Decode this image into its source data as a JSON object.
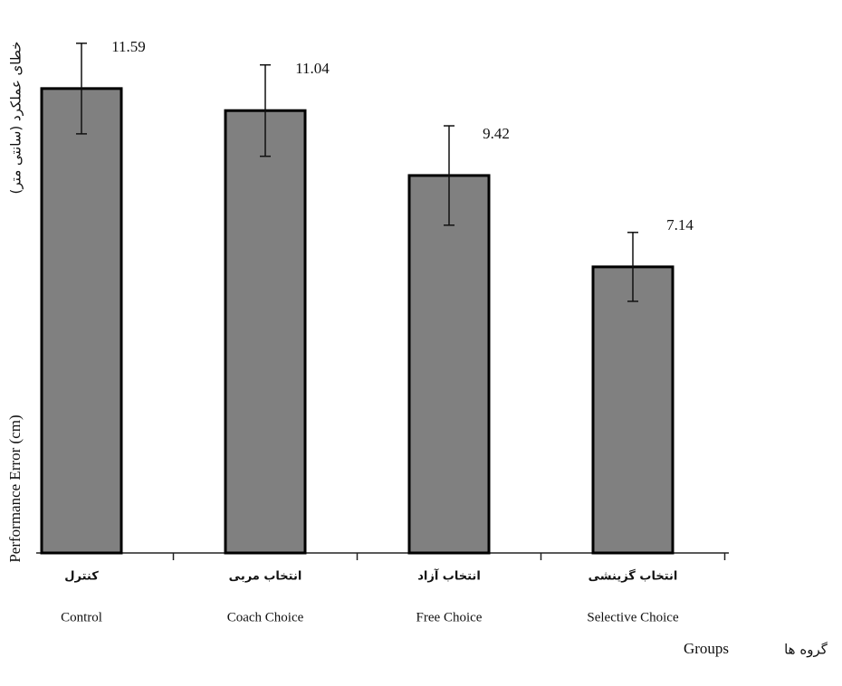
{
  "chart_data": {
    "type": "bar",
    "categories": [
      "Control",
      "Coach Choice",
      "Free Choice",
      "Selective Choice"
    ],
    "categories_fa": [
      "کنترل",
      "انتخاب مربی",
      "انتخاب آزاد",
      "انتخاب گزینشی"
    ],
    "values": [
      11.59,
      11.04,
      9.42,
      7.14
    ],
    "errors": [
      1.13,
      1.14,
      1.24,
      0.86
    ],
    "color": "#808080",
    "ylim": [
      0,
      13.8
    ],
    "y_label": "Performance Error (cm)",
    "y_label_fa": "خطای عملکرد (سانتی متر)",
    "x_label": "Groups",
    "x_label_fa": "گروه ها"
  }
}
